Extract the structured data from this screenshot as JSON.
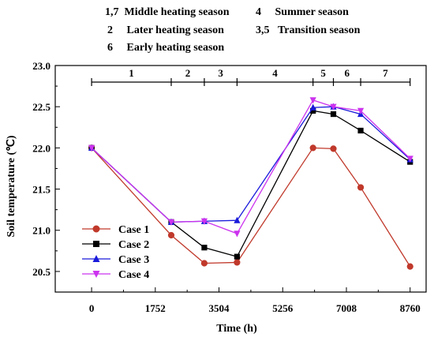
{
  "season_notes": [
    {
      "key": "1,7",
      "label": "Middle heating season"
    },
    {
      "key": "2",
      "label": "Later heating season"
    },
    {
      "key": "6",
      "label": "Early heating season"
    },
    {
      "key": "4",
      "label": "Summer season"
    },
    {
      "key": "3,5",
      "label": "Transition season"
    }
  ],
  "chart_data": {
    "type": "line",
    "title": "",
    "xlabel": "Time (h)",
    "ylabel": "Soil temperature (℃)",
    "xlim": [
      -1000,
      9200
    ],
    "ylim": [
      20.25,
      23.0
    ],
    "xticks": [
      "0",
      "1752",
      "3504",
      "5256",
      "7008",
      "8760"
    ],
    "yticks": [
      "20.5",
      "21.0",
      "21.5",
      "22.0",
      "22.5",
      "23.0"
    ],
    "x": [
      0,
      2190,
      3100,
      4000,
      6090,
      6650,
      7400,
      8760
    ],
    "series": [
      {
        "name": "Case 1",
        "color": "#c0392b",
        "marker": "circle",
        "values": [
          22.0,
          20.94,
          20.6,
          20.61,
          22.0,
          21.99,
          21.52,
          20.56
        ]
      },
      {
        "name": "Case 2",
        "color": "#000000",
        "marker": "square",
        "values": [
          22.0,
          21.1,
          20.79,
          20.68,
          22.45,
          22.41,
          22.21,
          21.83
        ]
      },
      {
        "name": "Case 3",
        "color": "#1a1adb",
        "marker": "triangle-up",
        "values": [
          22.0,
          21.1,
          21.11,
          21.12,
          22.49,
          22.5,
          22.41,
          21.86
        ]
      },
      {
        "name": "Case 4",
        "color": "#cc33ee",
        "marker": "triangle-down",
        "values": [
          22.0,
          21.1,
          21.11,
          20.96,
          22.58,
          22.5,
          22.45,
          21.87
        ]
      }
    ],
    "periods": {
      "boundaries": [
        0,
        2190,
        3100,
        4000,
        6090,
        6650,
        7400,
        8760
      ],
      "labels": [
        "1",
        "2",
        "3",
        "4",
        "5",
        "6",
        "7"
      ]
    },
    "legend_position": "bottom-left",
    "grid": false
  }
}
